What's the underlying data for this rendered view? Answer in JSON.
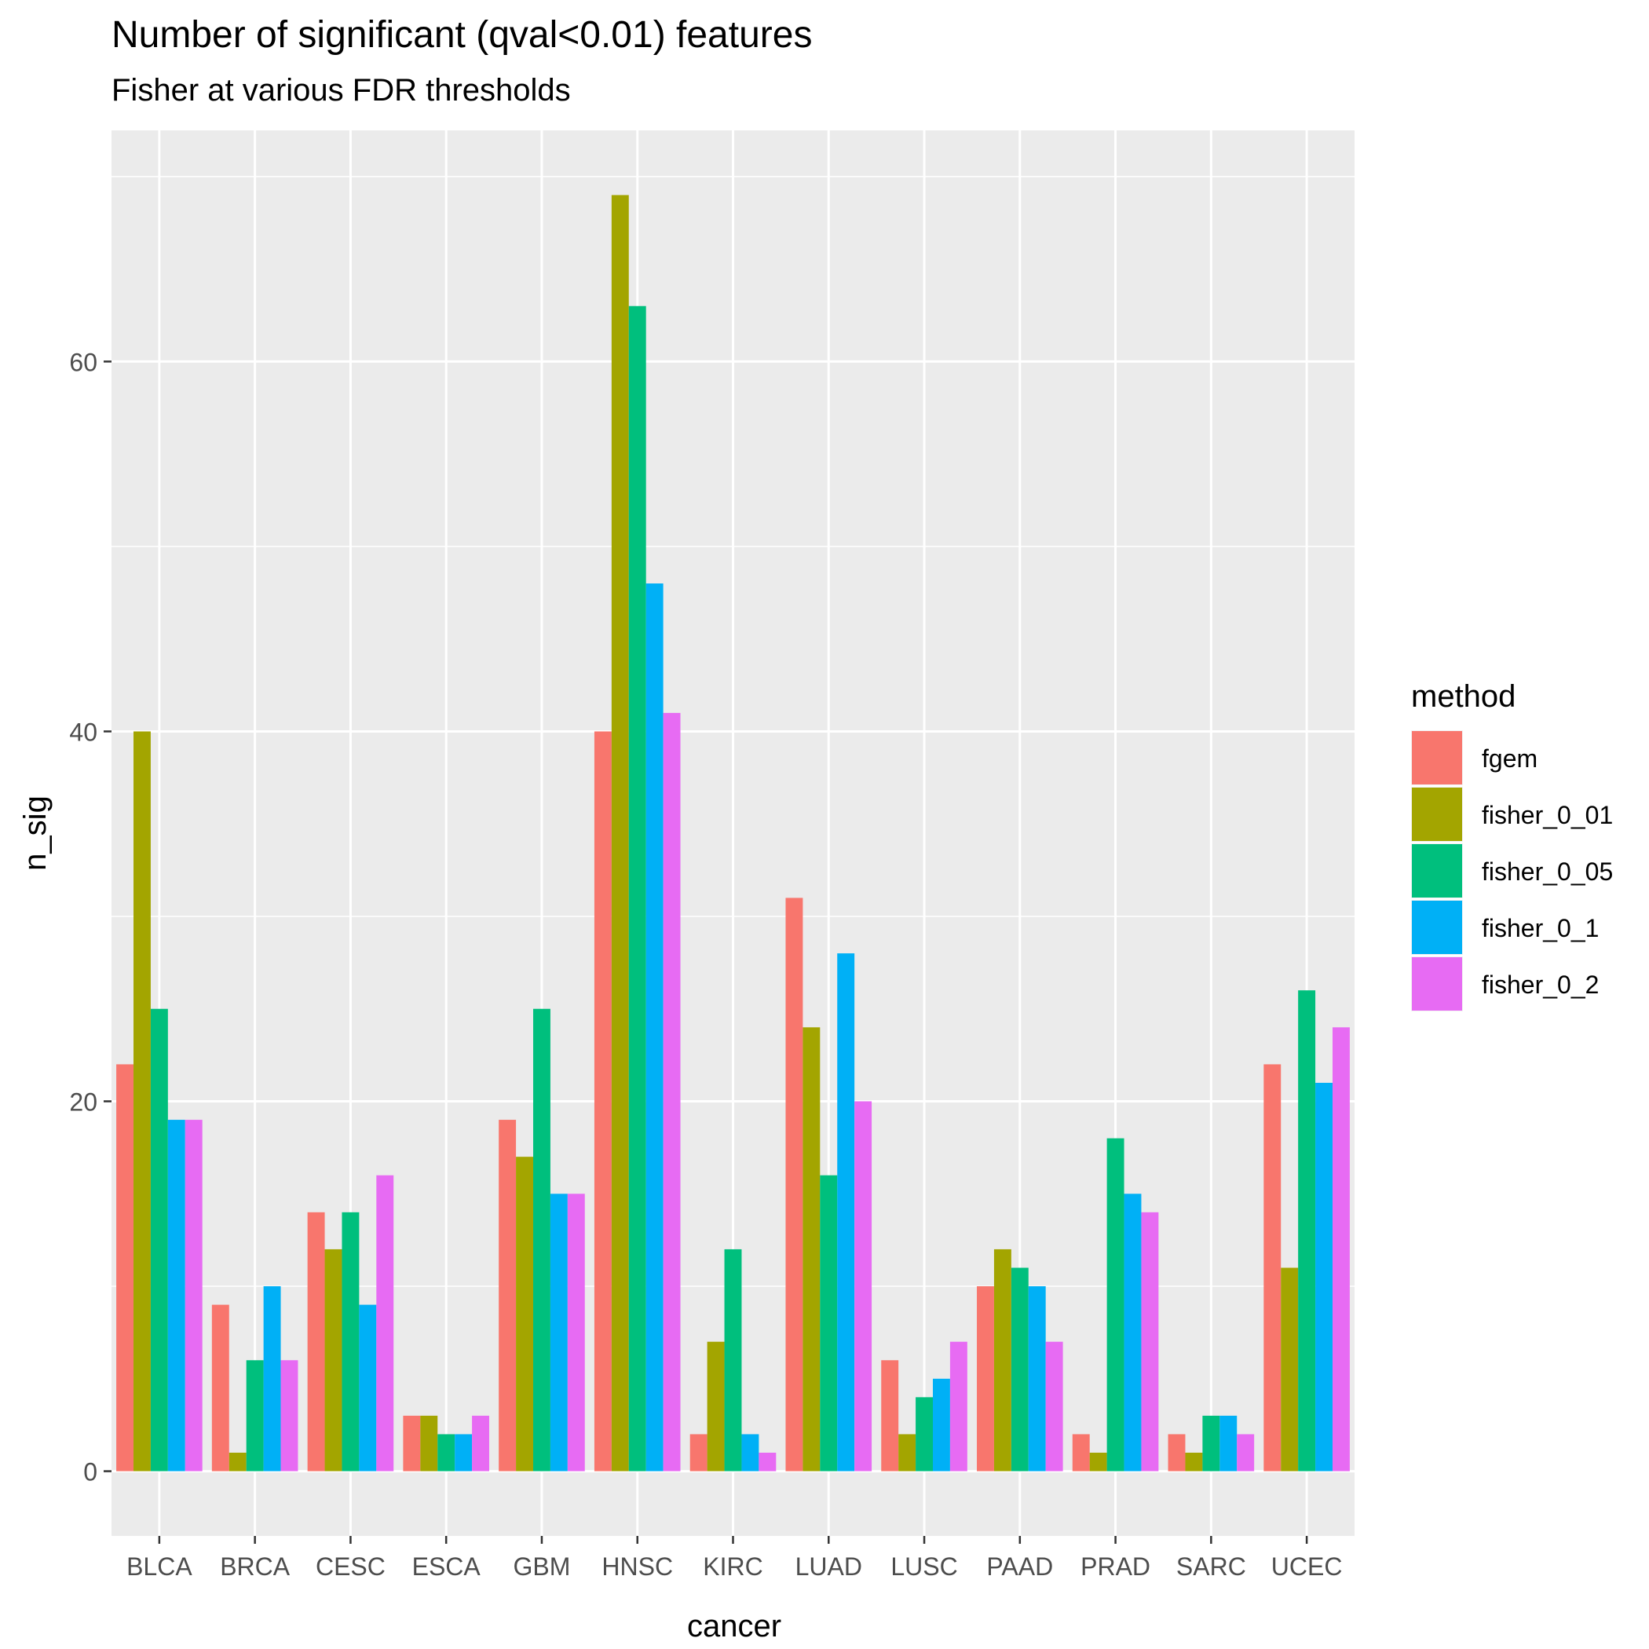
{
  "chart_data": {
    "type": "bar",
    "title": "Number of significant (qval<0.01) features",
    "subtitle": "Fisher at various FDR thresholds",
    "xlabel": "cancer",
    "ylabel": "n_sig",
    "categories": [
      "BLCA",
      "BRCA",
      "CESC",
      "ESCA",
      "GBM",
      "HNSC",
      "KIRC",
      "LUAD",
      "LUSC",
      "PAAD",
      "PRAD",
      "SARC",
      "UCEC"
    ],
    "ylim": [
      -3.5,
      72.5
    ],
    "yticks": [
      0,
      20,
      40,
      60
    ],
    "grid": true,
    "legend": {
      "title": "method",
      "position": "right"
    },
    "series": [
      {
        "name": "fgem",
        "color": "#F8766D",
        "values": [
          22,
          9,
          14,
          3,
          19,
          40,
          2,
          31,
          6,
          10,
          2,
          2,
          22
        ]
      },
      {
        "name": "fisher_0_01",
        "color": "#A3A500",
        "values": [
          40,
          1,
          12,
          3,
          17,
          69,
          7,
          24,
          2,
          12,
          1,
          1,
          11
        ]
      },
      {
        "name": "fisher_0_05",
        "color": "#00BF7D",
        "values": [
          25,
          6,
          14,
          2,
          25,
          63,
          12,
          16,
          4,
          11,
          18,
          3,
          26
        ]
      },
      {
        "name": "fisher_0_1",
        "color": "#00B0F6",
        "values": [
          19,
          10,
          9,
          2,
          15,
          48,
          2,
          28,
          5,
          10,
          15,
          3,
          21
        ]
      },
      {
        "name": "fisher_0_2",
        "color": "#E76BF3",
        "values": [
          19,
          6,
          16,
          3,
          15,
          41,
          1,
          20,
          7,
          7,
          14,
          2,
          24
        ]
      }
    ]
  }
}
